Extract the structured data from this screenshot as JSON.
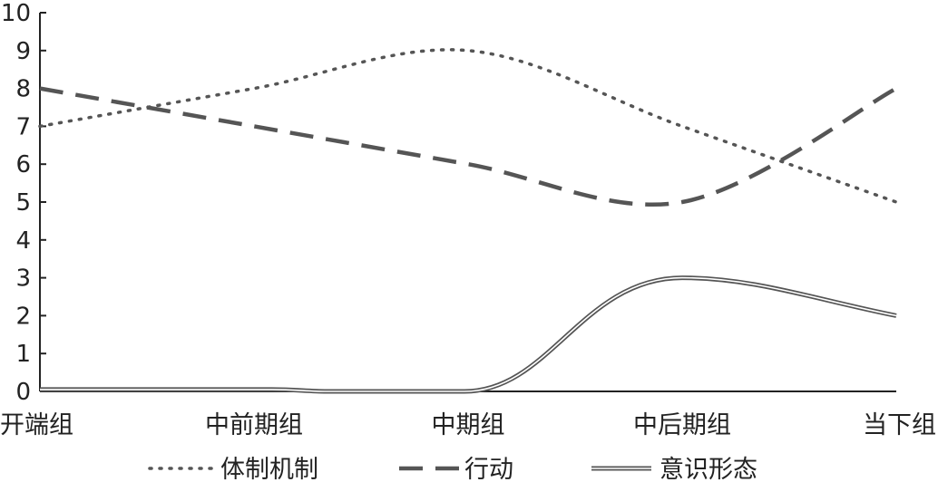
{
  "chart_data": {
    "type": "line",
    "categories": [
      "开端组",
      "中前期组",
      "中期组",
      "中后期组",
      "当下组"
    ],
    "ylim": [
      0,
      10
    ],
    "yticks": [
      "0",
      "1",
      "2",
      "3",
      "4",
      "5",
      "6",
      "7",
      "8",
      "9",
      "10"
    ],
    "grid": false,
    "legend_position": "bottom",
    "series": [
      {
        "name": "体制机制",
        "style": "dotted",
        "color": "#555555",
        "values": [
          7,
          8,
          9,
          7,
          5
        ]
      },
      {
        "name": "行动",
        "style": "dashed",
        "color": "#555555",
        "values": [
          8,
          7,
          6,
          5,
          8
        ]
      },
      {
        "name": "意识形态",
        "style": "double",
        "color": "#555555",
        "values": [
          0.05,
          0.05,
          0,
          3,
          2
        ]
      }
    ]
  }
}
